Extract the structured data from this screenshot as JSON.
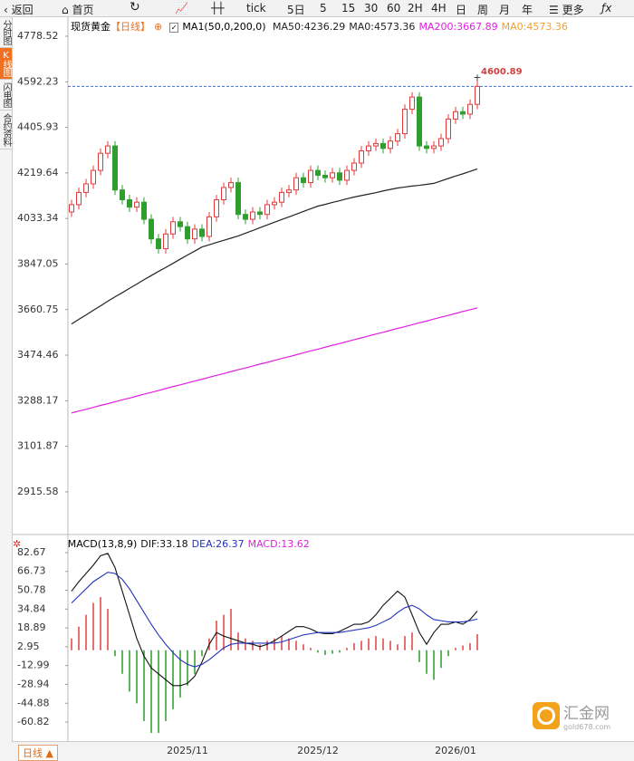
{
  "toolbar": {
    "back": "返回",
    "home": "首页",
    "tick": "tick",
    "periods": [
      "5日",
      "5",
      "15",
      "30",
      "60",
      "2H",
      "4H",
      "日",
      "周",
      "月",
      "年"
    ],
    "more": "更多"
  },
  "sidebar": [
    "分时图",
    "K线图",
    "闪电图",
    "合约资料"
  ],
  "footer": {
    "period": "日线 ▲"
  },
  "watermark": {
    "name": "汇金网",
    "url": "gold678.com"
  },
  "chart_data": [
    {
      "type": "candlestick",
      "title": "现货黄金",
      "period": "【日线】",
      "indicator": "MA1(50,0,200,0)",
      "categories": [
        null,
        null,
        null,
        null,
        null,
        null,
        null,
        null,
        null,
        null,
        null,
        null,
        null,
        null,
        null,
        null,
        "2025/11",
        null,
        null,
        null,
        null,
        null,
        null,
        null,
        null,
        null,
        null,
        null,
        null,
        null,
        null,
        null,
        null,
        null,
        "2025/12",
        null,
        null,
        null,
        null,
        null,
        null,
        null,
        null,
        null,
        null,
        null,
        null,
        null,
        null,
        null,
        null,
        null,
        null,
        "2026/01",
        null,
        null,
        null
      ],
      "open": [
        4060,
        4090,
        4140,
        4175,
        4230,
        4300,
        4330,
        4150,
        4110,
        4080,
        4100,
        4030,
        3950,
        3910,
        3970,
        4020,
        4000,
        3950,
        3990,
        3960,
        4040,
        4110,
        4160,
        4180,
        4050,
        4030,
        4060,
        4050,
        4090,
        4100,
        4140,
        4150,
        4200,
        4180,
        4230,
        4210,
        4200,
        4220,
        4190,
        4230,
        4260,
        4310,
        4330,
        4340,
        4320,
        4350,
        4380,
        4480,
        4530,
        4330,
        4320,
        4330,
        4360,
        4440,
        4470,
        4460,
        4500
      ],
      "high": [
        4110,
        4160,
        4195,
        4250,
        4320,
        4350,
        4350,
        4170,
        4130,
        4120,
        4120,
        4050,
        3970,
        3990,
        4040,
        4040,
        4020,
        4010,
        4010,
        4060,
        4130,
        4180,
        4200,
        4200,
        4070,
        4080,
        4080,
        4110,
        4120,
        4160,
        4170,
        4220,
        4220,
        4250,
        4250,
        4230,
        4240,
        4240,
        4250,
        4280,
        4330,
        4350,
        4360,
        4360,
        4370,
        4400,
        4500,
        4550,
        4550,
        4350,
        4350,
        4380,
        4460,
        4490,
        4490,
        4520,
        4600.89
      ],
      "low": [
        4040,
        4070,
        4120,
        4155,
        4210,
        4280,
        4130,
        4090,
        4060,
        4060,
        4010,
        3930,
        3890,
        3890,
        3950,
        3980,
        3930,
        3930,
        3940,
        3940,
        4020,
        4090,
        4140,
        4030,
        4010,
        4010,
        4030,
        4030,
        4070,
        4080,
        4120,
        4130,
        4160,
        4160,
        4190,
        4180,
        4180,
        4170,
        4170,
        4210,
        4240,
        4290,
        4310,
        4300,
        4300,
        4330,
        4360,
        4460,
        4310,
        4300,
        4300,
        4310,
        4340,
        4420,
        4440,
        4440,
        4480
      ],
      "close": [
        4090,
        4140,
        4175,
        4230,
        4300,
        4330,
        4150,
        4110,
        4080,
        4100,
        4030,
        3950,
        3910,
        3970,
        4020,
        4000,
        3950,
        3990,
        3960,
        4040,
        4110,
        4160,
        4180,
        4050,
        4030,
        4060,
        4050,
        4090,
        4100,
        4140,
        4150,
        4200,
        4180,
        4230,
        4210,
        4200,
        4220,
        4190,
        4230,
        4260,
        4310,
        4330,
        4340,
        4320,
        4350,
        4380,
        4480,
        4530,
        4330,
        4320,
        4330,
        4360,
        4440,
        4470,
        4460,
        4500,
        4573.36
      ],
      "up_color": "#e03a3a",
      "down_color": "#2f9e2f",
      "series": [
        {
          "name": "MA50:4236.29",
          "color": "#222222",
          "values": [
            3602,
            3621,
            3639,
            3658,
            3676,
            3695,
            3713,
            3730,
            3748,
            3765,
            3783,
            3800,
            3817,
            3833,
            3850,
            3867,
            3884,
            3900,
            3917,
            3926,
            3935,
            3944,
            3953,
            3962,
            3973,
            3984,
            3996,
            4007,
            4018,
            4029,
            4040,
            4051,
            4062,
            4073,
            4084,
            4091,
            4099,
            4106,
            4114,
            4121,
            4127,
            4133,
            4139,
            4146,
            4152,
            4158,
            4162,
            4166,
            4169,
            4173,
            4177,
            4187,
            4197,
            4207,
            4216,
            4226,
            4236.29
          ]
        },
        {
          "name": "MA200:3667.89",
          "color": "#e020e0",
          "values": [
            3238,
            3246,
            3253,
            3261,
            3269,
            3276,
            3284,
            3292,
            3299,
            3307,
            3315,
            3322,
            3330,
            3338,
            3346,
            3353,
            3361,
            3369,
            3376,
            3384,
            3392,
            3399,
            3407,
            3415,
            3422,
            3430,
            3438,
            3445,
            3453,
            3461,
            3468,
            3476,
            3484,
            3492,
            3499,
            3507,
            3515,
            3522,
            3530,
            3538,
            3545,
            3553,
            3561,
            3568,
            3576,
            3584,
            3591,
            3599,
            3607,
            3614,
            3622,
            3630,
            3637,
            3645,
            3653,
            3660,
            3667.89
          ]
        }
      ],
      "legend_extra": [
        {
          "label": "MA0:4573.36",
          "color": "#222222"
        },
        {
          "label": "MA0:4573.36",
          "color": "#f0a030"
        }
      ],
      "ylim": [
        2748.6,
        4808.2
      ],
      "yticks": [
        2915.58,
        3101.87,
        3288.17,
        3474.46,
        3660.75,
        3847.05,
        4033.34,
        4219.64,
        4405.93,
        4592.23,
        4778.52
      ]
    },
    {
      "type": "macd",
      "title": "MACD(13,8,9)",
      "series": [
        {
          "name": "DIF:33.18",
          "color": "#111111",
          "values": [
            50,
            58,
            65,
            72,
            80,
            82,
            70,
            50,
            30,
            10,
            -5,
            -15,
            -20,
            -25,
            -30,
            -30,
            -28,
            -22,
            -10,
            5,
            15,
            12,
            10,
            8,
            6,
            5,
            3,
            5,
            8,
            12,
            16,
            20,
            20,
            18,
            15,
            14,
            14,
            16,
            19,
            22,
            22,
            24,
            30,
            38,
            44,
            50,
            45,
            30,
            15,
            5,
            15,
            22,
            22,
            24,
            22,
            26,
            33.18
          ]
        },
        {
          "name": "DEA:26.37",
          "color": "#2233bb",
          "values": [
            40,
            46,
            52,
            58,
            62,
            66,
            65,
            60,
            52,
            42,
            32,
            22,
            13,
            5,
            -2,
            -8,
            -12,
            -14,
            -12,
            -8,
            -3,
            2,
            5,
            6,
            6,
            6,
            6,
            6,
            6,
            7,
            9,
            11,
            13,
            14,
            15,
            15,
            15,
            15,
            16,
            17,
            18,
            19,
            21,
            24,
            27,
            32,
            36,
            38,
            35,
            30,
            26,
            25,
            24,
            24,
            24,
            25,
            26.37
          ]
        },
        {
          "name": "MACD:13.62",
          "color": "#e020e0",
          "up_color": "#e04040",
          "down_color": "#2a9a2a",
          "values": [
            10,
            20,
            30,
            40,
            45,
            35,
            -5,
            -20,
            -35,
            -45,
            -60,
            -70,
            -70,
            -60,
            -50,
            -40,
            -30,
            -20,
            -5,
            10,
            25,
            30,
            35,
            15,
            10,
            8,
            5,
            8,
            10,
            12,
            10,
            8,
            5,
            2,
            -2,
            -4,
            -3,
            -2,
            2,
            6,
            8,
            10,
            12,
            10,
            8,
            5,
            12,
            15,
            -10,
            -20,
            -25,
            -15,
            -5,
            2,
            4,
            6,
            13.62
          ]
        }
      ],
      "ylim": [
        -74.6,
        90.3
      ],
      "yticks": [
        -60.82,
        -44.88,
        -28.94,
        -12.99,
        2.95,
        18.89,
        34.84,
        50.78,
        66.73,
        82.67
      ]
    }
  ]
}
